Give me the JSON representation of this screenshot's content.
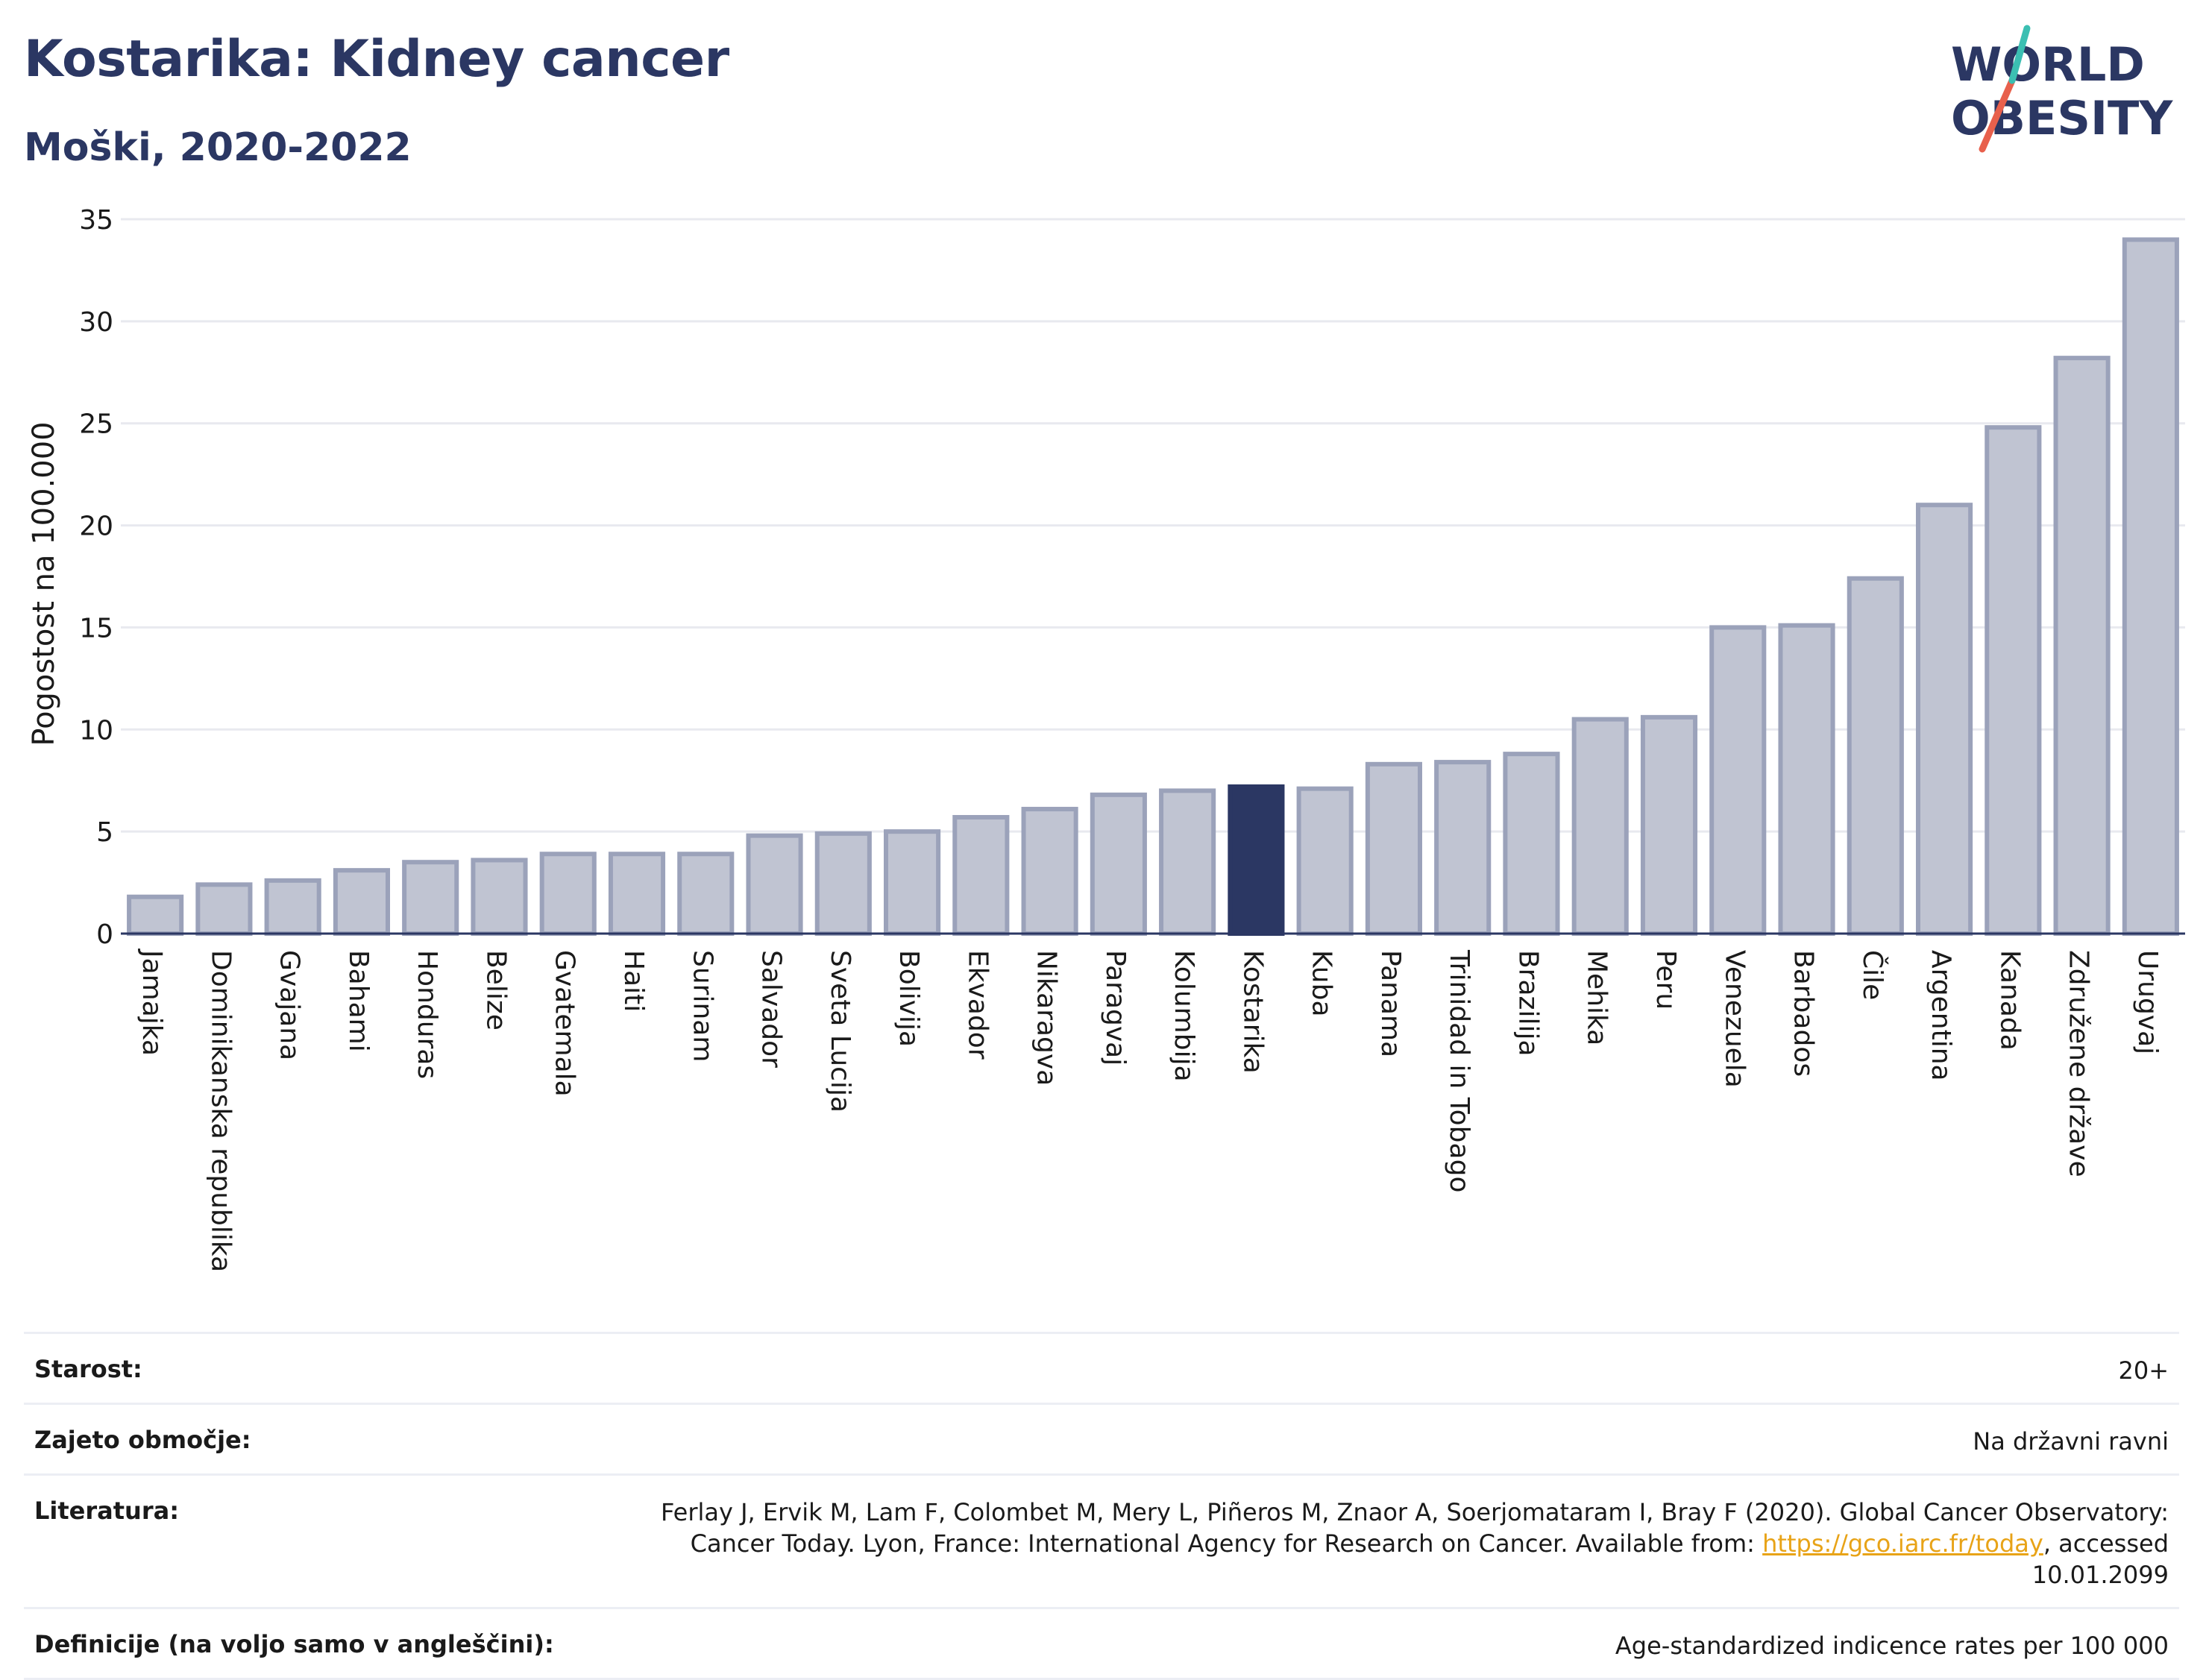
{
  "header": {
    "title": "Kostarika: Kidney cancer",
    "subtitle": "Moški, 2020-2022"
  },
  "logo": {
    "line1": "WORLD",
    "line2": "OBESITY"
  },
  "colors": {
    "bar": "#c0c4d2",
    "bar_border": "#9ba2ba",
    "highlight": "#2b3763",
    "title": "#2b3763",
    "link": "#e8a317"
  },
  "chart_data": {
    "type": "bar",
    "ylabel": "Pogostost na 100.000",
    "xlabel": "",
    "ylim": [
      0,
      35
    ],
    "yticks": [
      0,
      5,
      10,
      15,
      20,
      25,
      30,
      35
    ],
    "grid": true,
    "highlight": "Kostarika",
    "categories": [
      "Jamajka",
      "Dominikanska republika",
      "Gvajana",
      "Bahami",
      "Honduras",
      "Belize",
      "Gvatemala",
      "Haiti",
      "Surinam",
      "Salvador",
      "Sveta Lucija",
      "Bolivija",
      "Ekvador",
      "Nikaragva",
      "Paragvaj",
      "Kolumbija",
      "Kostarika",
      "Kuba",
      "Panama",
      "Trinidad in Tobago",
      "Brazilija",
      "Mehika",
      "Peru",
      "Venezuela",
      "Barbados",
      "Čile",
      "Argentina",
      "Kanada",
      "Združene države",
      "Urugvaj"
    ],
    "values": [
      1.8,
      2.4,
      2.6,
      3.1,
      3.5,
      3.6,
      3.9,
      3.9,
      3.9,
      4.8,
      4.9,
      5.0,
      5.7,
      6.1,
      6.8,
      7.0,
      7.2,
      7.1,
      8.3,
      8.4,
      8.8,
      10.5,
      10.6,
      15.0,
      15.1,
      17.4,
      21.0,
      24.8,
      28.2,
      34.0
    ]
  },
  "meta": {
    "age_label": "Starost:",
    "age_value": "20+",
    "coverage_label": "Zajeto območje:",
    "coverage_value": "Na državni ravni",
    "ref_label": "Literatura:",
    "ref_text1": "Ferlay J, Ervik M, Lam F, Colombet M, Mery L, Piñeros M, Znaor A, Soerjomataram I, Bray F (2020). Global Cancer Observatory: Cancer Today. Lyon, France: International Agency for Research on Cancer. Available from: ",
    "ref_link": "https://gco.iarc.fr/today",
    "ref_text2": ", accessed 10.01.2099",
    "def_label": "Definicije (na voljo samo v angleščini):",
    "def_value": "Age-standardized indicence rates per 100 000"
  }
}
